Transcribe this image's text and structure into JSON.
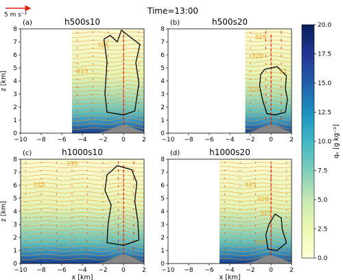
{
  "figure": {
    "title": "Time=13:00",
    "vector_key": "5 m s⁻¹",
    "colorbar": {
      "label": "qᵥ [g kg⁻¹]",
      "min": 0,
      "max": 20,
      "ticks": [
        "0.0",
        "2.5",
        "5.0",
        "7.5",
        "10.0",
        "12.5",
        "15.0",
        "17.5",
        "20.0"
      ]
    },
    "xlabel": "x [km]",
    "ylabel": "z [km]",
    "colors": {
      "moist": "#1a2f70",
      "dry": "#fcf6bf",
      "theta_contour": "#f0a020",
      "cloud_contour": "#000000",
      "vector": "#e02010",
      "terrain": "#888888"
    }
  },
  "chart_data": [
    {
      "type": "heatmap",
      "panel": "(a)",
      "title": "h500s10",
      "xlim": [
        -10,
        2
      ],
      "ylim": [
        0,
        8
      ],
      "xticks": [
        "-10",
        "-8",
        "-6",
        "-4",
        "-2",
        "0",
        "2"
      ],
      "yticks": [
        "0",
        "1",
        "2",
        "3",
        "4",
        "5",
        "6",
        "7",
        "8"
      ],
      "domain_x_start": -5,
      "contour_labels": [
        {
          "text": "325",
          "x": -2,
          "z": 6.6
        },
        {
          "text": "315",
          "x": -4,
          "z": 4.6
        }
      ]
    },
    {
      "type": "heatmap",
      "panel": "(b)",
      "title": "h500s20",
      "xlim": [
        -10,
        2
      ],
      "ylim": [
        0,
        8
      ],
      "xticks": [
        "-10",
        "-8",
        "-6",
        "-4",
        "-2",
        "0",
        "2"
      ],
      "yticks": [
        "0",
        "1",
        "2",
        "3",
        "4",
        "5",
        "6",
        "7",
        "8"
      ],
      "domain_x_start": -2.5,
      "contour_labels": [
        {
          "text": "325",
          "x": -1,
          "z": 7.2
        },
        {
          "text": "320",
          "x": -1.3,
          "z": 5.8
        },
        {
          "text": "31",
          "x": 1.2,
          "z": 4.6
        },
        {
          "text": "310",
          "x": -1.6,
          "z": 3.2
        }
      ]
    },
    {
      "type": "heatmap",
      "panel": "(c)",
      "title": "h1000s10",
      "xlim": [
        -10,
        2
      ],
      "ylim": [
        0,
        8
      ],
      "xticks": [
        "-10",
        "-8",
        "-6",
        "-4",
        "-2",
        "0",
        "2"
      ],
      "yticks": [
        "0",
        "1",
        "2",
        "3",
        "4",
        "5",
        "6",
        "7",
        "8"
      ],
      "domain_x_start": -10,
      "contour_labels": [
        {
          "text": "330",
          "x": -5,
          "z": 7.5
        },
        {
          "text": "325",
          "x": -8.2,
          "z": 5.9
        }
      ]
    },
    {
      "type": "heatmap",
      "panel": "(d)",
      "title": "h1000s20",
      "xlim": [
        -10,
        2
      ],
      "ylim": [
        0,
        8
      ],
      "xticks": [
        "-10",
        "-8",
        "-6",
        "-4",
        "-2",
        "0",
        "2"
      ],
      "yticks": [
        "0",
        "1",
        "2",
        "3",
        "4",
        "5",
        "6",
        "7",
        "8"
      ],
      "domain_x_start": -5,
      "contour_labels": [
        {
          "text": "325",
          "x": -2,
          "z": 5.9
        },
        {
          "text": "320",
          "x": -0.8,
          "z": 4.8
        },
        {
          "text": "315",
          "x": -0.5,
          "z": 3.7
        },
        {
          "text": "310",
          "x": -1,
          "z": 1.5
        }
      ]
    }
  ]
}
